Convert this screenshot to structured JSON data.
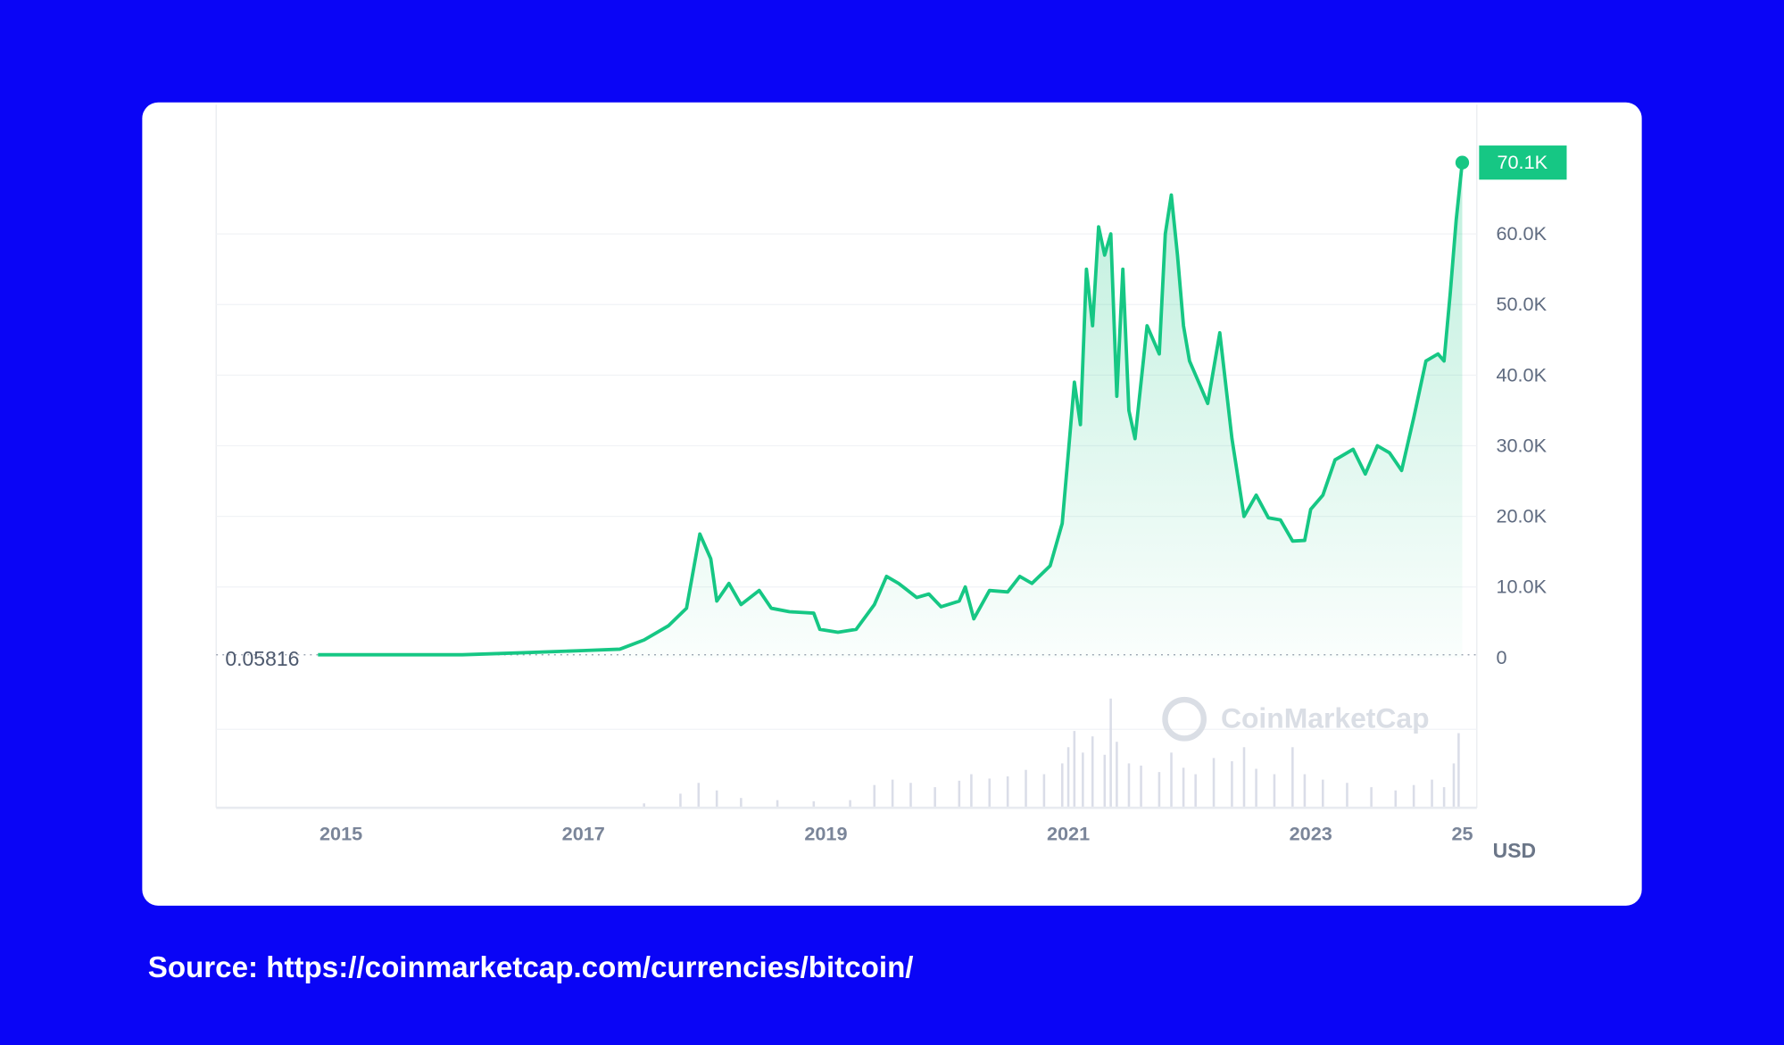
{
  "chart_data": {
    "type": "line",
    "color": "#16c784",
    "grid": true,
    "x": [
      2014.81,
      2016.0,
      2016.5,
      2017.0,
      2017.3,
      2017.5,
      2017.7,
      2017.85,
      2017.96,
      2018.05,
      2018.1,
      2018.2,
      2018.3,
      2018.45,
      2018.55,
      2018.7,
      2018.9,
      2018.95,
      2019.1,
      2019.25,
      2019.4,
      2019.5,
      2019.6,
      2019.75,
      2019.85,
      2019.95,
      2020.1,
      2020.15,
      2020.22,
      2020.35,
      2020.5,
      2020.6,
      2020.7,
      2020.85,
      2020.95,
      2021.0,
      2021.05,
      2021.1,
      2021.15,
      2021.2,
      2021.25,
      2021.3,
      2021.35,
      2021.4,
      2021.45,
      2021.5,
      2021.55,
      2021.65,
      2021.75,
      2021.8,
      2021.85,
      2021.9,
      2021.95,
      2022.0,
      2022.1,
      2022.15,
      2022.25,
      2022.35,
      2022.45,
      2022.55,
      2022.65,
      2022.75,
      2022.85,
      2022.95,
      2023.0,
      2023.1,
      2023.2,
      2023.35,
      2023.45,
      2023.55,
      2023.65,
      2023.75,
      2023.85,
      2023.95,
      2024.05,
      2024.1,
      2024.15,
      2024.2,
      2024.25
    ],
    "values": [
      400,
      400,
      700,
      1000,
      1200,
      2500,
      4500,
      7000,
      17500,
      14000,
      8000,
      10500,
      7500,
      9500,
      7000,
      6500,
      6300,
      4000,
      3600,
      4000,
      7500,
      11500,
      10500,
      8500,
      9000,
      7200,
      8000,
      10000,
      5500,
      9500,
      9300,
      11500,
      10500,
      13000,
      19000,
      29000,
      39000,
      33000,
      55000,
      47000,
      61000,
      57000,
      60000,
      37000,
      55000,
      35000,
      31000,
      47000,
      43000,
      60000,
      65500,
      57000,
      47000,
      42000,
      38000,
      36000,
      46000,
      31000,
      20000,
      23000,
      19800,
      19500,
      16500,
      16600,
      21000,
      23000,
      28000,
      29500,
      26000,
      30000,
      29000,
      26500,
      34000,
      42000,
      43000,
      42000,
      51500,
      62000,
      70100
    ],
    "current_label": "70.1K",
    "low_label": "0.05816",
    "currency": "USD",
    "xlim": [
      2013.97,
      2024.37
    ],
    "xticks": [
      2015,
      2017,
      2019,
      2021,
      2023,
      {
        "value": 2024.25,
        "label": "25"
      }
    ],
    "ylim": [
      0,
      78300
    ],
    "yticks": [
      {
        "value": 0,
        "label": "0"
      },
      {
        "value": 10000,
        "label": "10.0K"
      },
      {
        "value": 20000,
        "label": "20.0K"
      },
      {
        "value": 30000,
        "label": "30.0K"
      },
      {
        "value": 40000,
        "label": "40.0K"
      },
      {
        "value": 50000,
        "label": "50.0K"
      },
      {
        "value": 60000,
        "label": "60.0K"
      }
    ],
    "volume": {
      "x": [
        2017.5,
        2017.8,
        2017.95,
        2018.1,
        2018.3,
        2018.6,
        2018.9,
        2019.2,
        2019.4,
        2019.55,
        2019.7,
        2019.9,
        2020.1,
        2020.2,
        2020.35,
        2020.5,
        2020.65,
        2020.8,
        2020.95,
        2021.0,
        2021.05,
        2021.12,
        2021.2,
        2021.3,
        2021.35,
        2021.4,
        2021.5,
        2021.6,
        2021.75,
        2021.85,
        2021.95,
        2022.05,
        2022.2,
        2022.35,
        2022.45,
        2022.55,
        2022.7,
        2022.85,
        2022.95,
        2023.1,
        2023.3,
        2023.5,
        2023.7,
        2023.85,
        2024.0,
        2024.1,
        2024.18,
        2024.22
      ],
      "values": [
        3,
        12,
        22,
        15,
        8,
        6,
        5,
        6,
        20,
        25,
        22,
        18,
        24,
        30,
        26,
        28,
        34,
        30,
        40,
        55,
        70,
        50,
        65,
        48,
        100,
        60,
        40,
        38,
        32,
        50,
        36,
        30,
        45,
        42,
        55,
        35,
        30,
        55,
        30,
        25,
        22,
        18,
        15,
        20,
        25,
        18,
        40,
        68
      ]
    },
    "watermark": "CoinMarketCap"
  },
  "source": "Source: https://coinmarketcap.com/currencies/bitcoin/"
}
